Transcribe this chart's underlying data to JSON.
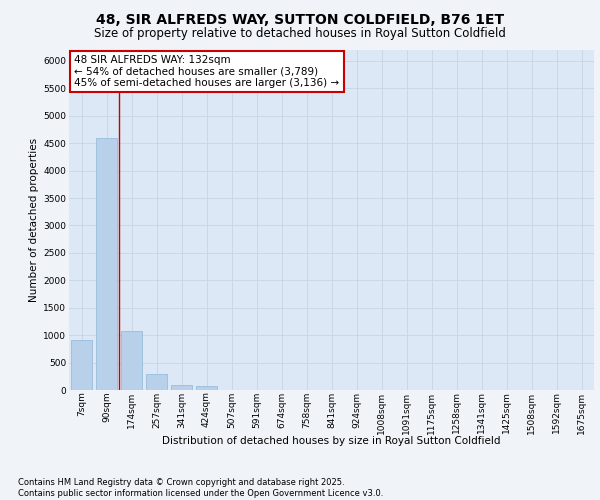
{
  "title": "48, SIR ALFREDS WAY, SUTTON COLDFIELD, B76 1ET",
  "subtitle": "Size of property relative to detached houses in Royal Sutton Coldfield",
  "xlabel": "Distribution of detached houses by size in Royal Sutton Coldfield",
  "ylabel": "Number of detached properties",
  "categories": [
    "7sqm",
    "90sqm",
    "174sqm",
    "257sqm",
    "341sqm",
    "424sqm",
    "507sqm",
    "591sqm",
    "674sqm",
    "758sqm",
    "841sqm",
    "924sqm",
    "1008sqm",
    "1091sqm",
    "1175sqm",
    "1258sqm",
    "1341sqm",
    "1425sqm",
    "1508sqm",
    "1592sqm",
    "1675sqm"
  ],
  "values": [
    920,
    4600,
    1080,
    300,
    90,
    65,
    0,
    0,
    0,
    0,
    0,
    0,
    0,
    0,
    0,
    0,
    0,
    0,
    0,
    0,
    0
  ],
  "bar_color": "#b8d0ea",
  "bar_edge_color": "#90b8d8",
  "vline_color": "#cc0000",
  "vline_x_idx": 1.5,
  "annotation_text": "48 SIR ALFREDS WAY: 132sqm\n← 54% of detached houses are smaller (3,789)\n45% of semi-detached houses are larger (3,136) →",
  "annotation_box_color": "white",
  "annotation_box_edge_color": "#cc0000",
  "ylim": [
    0,
    6200
  ],
  "yticks": [
    0,
    500,
    1000,
    1500,
    2000,
    2500,
    3000,
    3500,
    4000,
    4500,
    5000,
    5500,
    6000
  ],
  "grid_color": "#c5d5e5",
  "plot_bg_color": "#dce8f5",
  "fig_bg_color": "#f0f4f8",
  "footer": "Contains HM Land Registry data © Crown copyright and database right 2025.\nContains public sector information licensed under the Open Government Licence v3.0.",
  "title_fontsize": 10,
  "subtitle_fontsize": 8.5,
  "axis_label_fontsize": 7.5,
  "tick_fontsize": 6.5,
  "annotation_fontsize": 7.5,
  "footer_fontsize": 6
}
